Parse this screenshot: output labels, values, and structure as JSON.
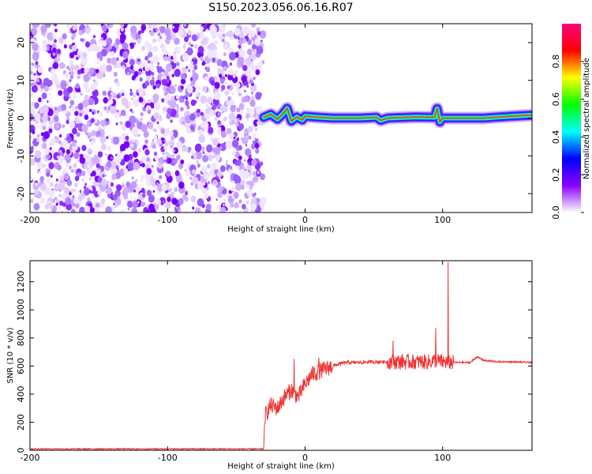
{
  "title": "S150.2023.056.06.16.R07",
  "chart_data": [
    {
      "type": "heatmap",
      "xlabel": "Height of straight line (km)",
      "ylabel": "Frequency (Hz)",
      "xlim": [
        -200,
        165
      ],
      "ylim": [
        -25,
        25
      ],
      "xticks": [
        -200,
        -100,
        0,
        100
      ],
      "yticks": [
        -20,
        -10,
        0,
        10,
        20
      ],
      "noise_region": {
        "x_from": -200,
        "x_to": -30
      },
      "signal_track": [
        [
          -30,
          0.2
        ],
        [
          -25,
          1.0
        ],
        [
          -20,
          -0.3
        ],
        [
          -16,
          1.2
        ],
        [
          -13,
          2.6
        ],
        [
          -10,
          -0.8
        ],
        [
          -6,
          0.3
        ],
        [
          -2,
          -0.5
        ],
        [
          0,
          0.5
        ],
        [
          10,
          0.2
        ],
        [
          20,
          0.0
        ],
        [
          40,
          0.0
        ],
        [
          52,
          0.2
        ],
        [
          55,
          -0.6
        ],
        [
          60,
          0.0
        ],
        [
          80,
          0.3
        ],
        [
          94,
          0.2
        ],
        [
          96,
          2.5
        ],
        [
          98,
          -1.0
        ],
        [
          100,
          0.0
        ],
        [
          130,
          0.0
        ],
        [
          150,
          0.5
        ],
        [
          165,
          0.8
        ]
      ],
      "colorbar": {
        "label": "Normalized spectral amplitude",
        "range": [
          0,
          1
        ],
        "ticks": [
          "0.0",
          "0.2",
          "0.4",
          "0.6",
          "0.8"
        ],
        "colors": [
          "#ffffff",
          "#8a00ff",
          "#0000ff",
          "#00ffff",
          "#00ff00",
          "#ffff00",
          "#ff0000",
          "#ff0080"
        ]
      }
    },
    {
      "type": "line",
      "xlabel": "Height of straight line (km)",
      "ylabel": "SNR (10 * v/v)",
      "xlim": [
        -200,
        165
      ],
      "ylim": [
        0,
        1350
      ],
      "xticks": [
        -200,
        -100,
        0,
        100
      ],
      "yticks": [
        0,
        200,
        400,
        600,
        800,
        1000,
        1200
      ],
      "color": "#ee3333",
      "series_profile": [
        [
          -200,
          10
        ],
        [
          -30,
          10
        ],
        [
          -29,
          250
        ],
        [
          -25,
          320
        ],
        [
          -20,
          300
        ],
        [
          -15,
          380
        ],
        [
          -10,
          430
        ],
        [
          -5,
          380
        ],
        [
          0,
          470
        ],
        [
          5,
          540
        ],
        [
          10,
          560
        ],
        [
          15,
          580
        ],
        [
          20,
          600
        ],
        [
          25,
          615
        ],
        [
          30,
          625
        ],
        [
          40,
          625
        ],
        [
          50,
          630
        ],
        [
          60,
          630
        ],
        [
          70,
          630
        ],
        [
          80,
          630
        ],
        [
          90,
          630
        ],
        [
          95,
          640
        ],
        [
          100,
          630
        ],
        [
          105,
          625
        ],
        [
          110,
          625
        ],
        [
          120,
          625
        ],
        [
          125,
          665
        ],
        [
          130,
          640
        ],
        [
          140,
          630
        ],
        [
          150,
          630
        ],
        [
          165,
          625
        ]
      ],
      "spikes": [
        {
          "x": -8,
          "y": 650
        },
        {
          "x": 10,
          "y": 660
        },
        {
          "x": 64,
          "y": 780
        },
        {
          "x": 95,
          "y": 870
        },
        {
          "x": 104,
          "y": 1340
        }
      ]
    }
  ]
}
